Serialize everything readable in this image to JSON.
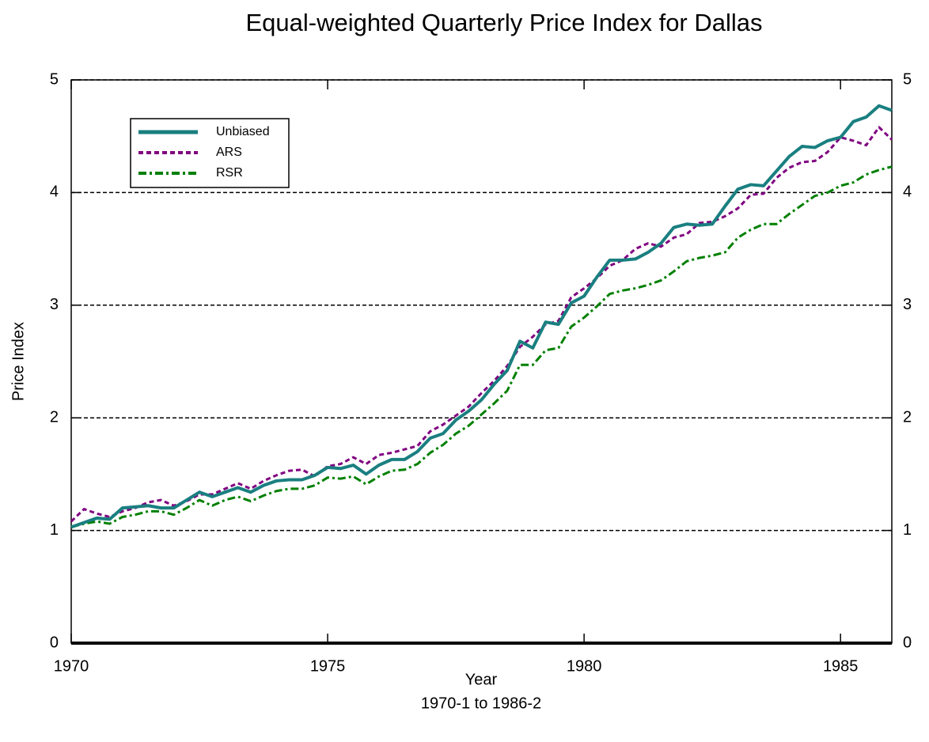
{
  "chart_data": {
    "type": "line",
    "title": "Equal-weighted Quarterly Price Index for Dallas",
    "xlabel": "Year",
    "xsubtitle": "1970-1 to 1986-2",
    "ylabel": "Price Index",
    "x": [
      1970,
      1970.25,
      1970.5,
      1970.75,
      1971,
      1971.25,
      1971.5,
      1971.75,
      1972,
      1972.25,
      1972.5,
      1972.75,
      1973,
      1973.25,
      1973.5,
      1973.75,
      1974,
      1974.25,
      1974.5,
      1974.75,
      1975,
      1975.25,
      1975.5,
      1975.75,
      1976,
      1976.25,
      1976.5,
      1976.75,
      1977,
      1977.25,
      1977.5,
      1977.75,
      1978,
      1978.25,
      1978.5,
      1978.75,
      1979,
      1979.25,
      1979.5,
      1979.75,
      1980,
      1980.25,
      1980.5,
      1980.75,
      1981,
      1981.25,
      1981.5,
      1981.75,
      1982,
      1982.25,
      1982.5,
      1982.75,
      1983,
      1983.25,
      1983.5,
      1983.75,
      1984,
      1984.25,
      1984.5,
      1984.75,
      1985,
      1985.25,
      1985.5,
      1985.75,
      1986
    ],
    "series": [
      {
        "name": "Unbiased",
        "color": "#1a7f80",
        "linestyle": "solid",
        "linewidth": 4,
        "values": [
          1.03,
          1.07,
          1.11,
          1.1,
          1.2,
          1.21,
          1.22,
          1.2,
          1.2,
          1.27,
          1.34,
          1.3,
          1.34,
          1.38,
          1.34,
          1.4,
          1.44,
          1.45,
          1.45,
          1.49,
          1.56,
          1.55,
          1.58,
          1.5,
          1.58,
          1.63,
          1.63,
          1.7,
          1.82,
          1.86,
          1.98,
          2.06,
          2.16,
          2.3,
          2.42,
          2.68,
          2.62,
          2.85,
          2.83,
          3.02,
          3.08,
          3.25,
          3.4,
          3.4,
          3.41,
          3.47,
          3.55,
          3.69,
          3.72,
          3.71,
          3.72,
          3.88,
          4.03,
          4.07,
          4.06,
          4.19,
          4.32,
          4.41,
          4.4,
          4.46,
          4.49,
          4.63,
          4.67,
          4.77,
          4.73
        ]
      },
      {
        "name": "ARS",
        "color": "#800080",
        "linestyle": "dashed",
        "linewidth": 3,
        "values": [
          1.08,
          1.19,
          1.15,
          1.12,
          1.17,
          1.2,
          1.25,
          1.27,
          1.22,
          1.26,
          1.32,
          1.32,
          1.37,
          1.42,
          1.37,
          1.44,
          1.49,
          1.53,
          1.54,
          1.48,
          1.57,
          1.59,
          1.65,
          1.59,
          1.67,
          1.69,
          1.72,
          1.75,
          1.88,
          1.94,
          2.02,
          2.1,
          2.22,
          2.33,
          2.46,
          2.63,
          2.72,
          2.83,
          2.86,
          3.07,
          3.15,
          3.24,
          3.35,
          3.4,
          3.5,
          3.55,
          3.52,
          3.6,
          3.63,
          3.73,
          3.74,
          3.79,
          3.86,
          3.98,
          3.99,
          4.13,
          4.22,
          4.27,
          4.28,
          4.36,
          4.49,
          4.46,
          4.42,
          4.58,
          4.47
        ]
      },
      {
        "name": "RSR",
        "color": "#008000",
        "linestyle": "dashdot",
        "linewidth": 3,
        "values": [
          1.03,
          1.06,
          1.08,
          1.06,
          1.12,
          1.14,
          1.17,
          1.17,
          1.14,
          1.2,
          1.27,
          1.22,
          1.27,
          1.3,
          1.26,
          1.31,
          1.35,
          1.37,
          1.37,
          1.4,
          1.47,
          1.46,
          1.48,
          1.41,
          1.48,
          1.53,
          1.54,
          1.59,
          1.69,
          1.76,
          1.86,
          1.93,
          2.03,
          2.13,
          2.24,
          2.47,
          2.47,
          2.6,
          2.62,
          2.81,
          2.89,
          2.99,
          3.1,
          3.13,
          3.15,
          3.18,
          3.22,
          3.3,
          3.39,
          3.42,
          3.44,
          3.47,
          3.6,
          3.67,
          3.72,
          3.72,
          3.81,
          3.89,
          3.97,
          4.0,
          4.06,
          4.09,
          4.16,
          4.2,
          4.23
        ]
      }
    ],
    "xlim": [
      1970,
      1986
    ],
    "xticks": [
      1970,
      1975,
      1980,
      1985
    ],
    "ylim": [
      0,
      5
    ],
    "yticks": [
      0,
      1,
      2,
      3,
      4,
      5
    ],
    "grid": true,
    "legend": "upper left"
  }
}
